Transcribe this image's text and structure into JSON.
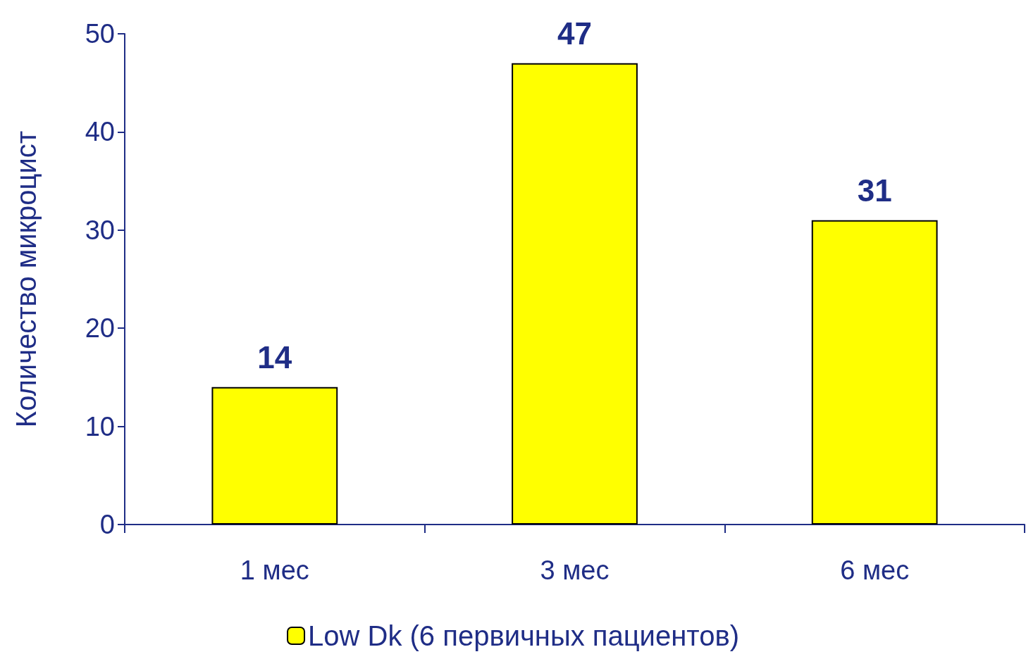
{
  "chart_data": {
    "type": "bar",
    "ylabel": "Количество микроцист",
    "categories": [
      "1 мес",
      "3 мес",
      "6 мес"
    ],
    "series": [
      {
        "name": "Low Dk (6 первичных пациентов)",
        "color": "#ffff00",
        "values": [
          14,
          47,
          31
        ]
      }
    ],
    "ylim": [
      0,
      50
    ],
    "yticks": [
      0,
      10,
      20,
      30,
      40,
      50
    ],
    "data_labels": true,
    "legend": "bottom",
    "grid": false
  }
}
